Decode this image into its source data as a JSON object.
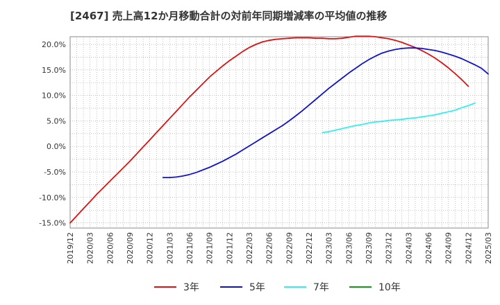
{
  "chart_data": {
    "type": "line",
    "title": "[2467]  売上高12か月移動合計の対前年同期増減率の平均値の推移",
    "xlabel": "",
    "ylabel": "",
    "ylim": [
      -16,
      21.5
    ],
    "y_ticks": [
      20,
      15,
      10,
      5,
      0,
      -5,
      -10,
      -15
    ],
    "y_tick_labels": [
      "20.0%",
      "15.0%",
      "10.0%",
      "5.0%",
      "0.0%",
      "-5.0%",
      "-10.0%",
      "-15.0%"
    ],
    "x_tick_labels": [
      "2019/12",
      "2020/03",
      "2020/06",
      "2020/09",
      "2020/12",
      "2021/03",
      "2021/06",
      "2021/09",
      "2021/12",
      "2022/03",
      "2022/06",
      "2022/09",
      "2022/12",
      "2023/03",
      "2023/06",
      "2023/09",
      "2023/12",
      "2024/03",
      "2024/06",
      "2024/09",
      "2024/12",
      "2025/03"
    ],
    "grid": true,
    "legend_position": "bottom",
    "series": [
      {
        "name": "3年",
        "color": "#dd1111",
        "start_index": 0,
        "values": [
          -15.0,
          -13.6,
          -12.2,
          -10.8,
          -9.4,
          -8.1,
          -6.8,
          -5.5,
          -4.2,
          -2.9,
          -1.5,
          -0.1,
          1.3,
          2.7,
          4.1,
          5.5,
          6.9,
          8.3,
          9.7,
          11.0,
          12.3,
          13.6,
          14.7,
          15.8,
          16.8,
          17.7,
          18.6,
          19.4,
          20.0,
          20.5,
          20.8,
          21.0,
          21.1,
          21.2,
          21.3,
          21.3,
          21.3,
          21.2,
          21.2,
          21.1,
          21.1,
          21.2,
          21.4,
          21.6,
          21.6,
          21.6,
          21.5,
          21.3,
          21.1,
          20.8,
          20.4,
          19.9,
          19.4,
          18.8,
          18.1,
          17.3,
          16.4,
          15.4,
          14.3,
          13.1,
          11.8
        ]
      },
      {
        "name": "5年",
        "color": "#1111cc",
        "start_index": 14,
        "values": [
          -6.1,
          -6.1,
          -6.0,
          -5.8,
          -5.5,
          -5.1,
          -4.6,
          -4.1,
          -3.5,
          -2.9,
          -2.2,
          -1.5,
          -0.7,
          0.1,
          0.9,
          1.7,
          2.5,
          3.3,
          4.1,
          5.0,
          6.0,
          7.0,
          8.1,
          9.2,
          10.3,
          11.4,
          12.4,
          13.4,
          14.4,
          15.3,
          16.2,
          17.0,
          17.7,
          18.3,
          18.7,
          19.0,
          19.2,
          19.3,
          19.3,
          19.2,
          19.0,
          18.8,
          18.5,
          18.1,
          17.7,
          17.2,
          16.6,
          16.0,
          15.3,
          14.2
        ]
      },
      {
        "name": "7年",
        "color": "#33eeee",
        "start_index": 38,
        "values": [
          2.7,
          2.9,
          3.2,
          3.5,
          3.8,
          4.1,
          4.3,
          4.6,
          4.8,
          4.9,
          5.1,
          5.2,
          5.3,
          5.5,
          5.6,
          5.8,
          6.0,
          6.2,
          6.5,
          6.8,
          7.1,
          7.6,
          8.0,
          8.5
        ]
      },
      {
        "name": "10年",
        "color": "#119911",
        "start_index": 0,
        "values": []
      }
    ]
  }
}
